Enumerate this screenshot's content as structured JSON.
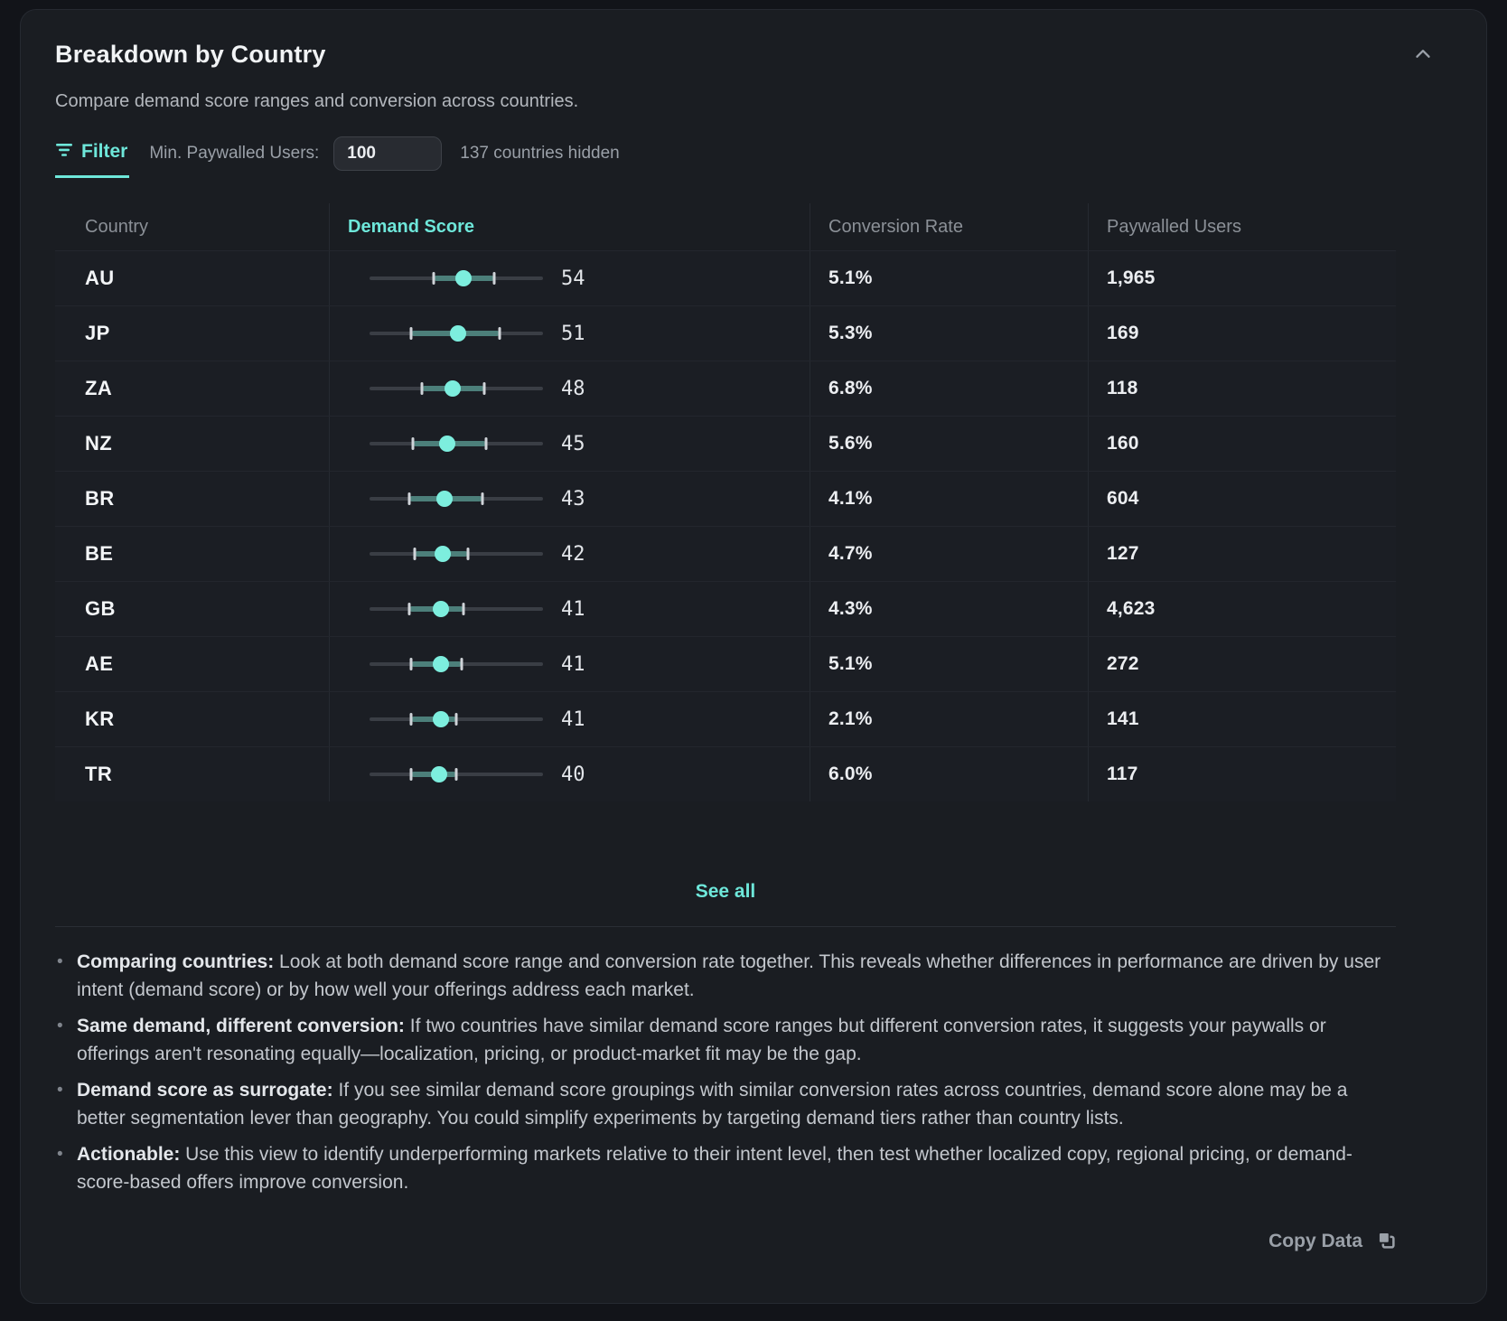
{
  "panel": {
    "title": "Breakdown by Country",
    "subtitle": "Compare demand score ranges and conversion across countries.",
    "collapse_icon": "chevron-up"
  },
  "filter": {
    "label": "Filter",
    "min_label": "Min. Paywalled Users:",
    "input_value": "100",
    "hidden_note": "137 countries hidden"
  },
  "table": {
    "columns": [
      "Country",
      "Demand Score",
      "Conversion Rate",
      "Paywalled Users"
    ],
    "scale_max": 100,
    "rows": [
      {
        "country": "AU",
        "score": 54,
        "low": 37,
        "high": 72,
        "conversion": "5.1%",
        "users": "1,965"
      },
      {
        "country": "JP",
        "score": 51,
        "low": 24,
        "high": 75,
        "conversion": "5.3%",
        "users": "169"
      },
      {
        "country": "ZA",
        "score": 48,
        "low": 30,
        "high": 66,
        "conversion": "6.8%",
        "users": "118"
      },
      {
        "country": "NZ",
        "score": 45,
        "low": 25,
        "high": 67,
        "conversion": "5.6%",
        "users": "160"
      },
      {
        "country": "BR",
        "score": 43,
        "low": 23,
        "high": 65,
        "conversion": "4.1%",
        "users": "604"
      },
      {
        "country": "BE",
        "score": 42,
        "low": 26,
        "high": 57,
        "conversion": "4.7%",
        "users": "127"
      },
      {
        "country": "GB",
        "score": 41,
        "low": 23,
        "high": 54,
        "conversion": "4.3%",
        "users": "4,623"
      },
      {
        "country": "AE",
        "score": 41,
        "low": 24,
        "high": 53,
        "conversion": "5.1%",
        "users": "272"
      },
      {
        "country": "KR",
        "score": 41,
        "low": 24,
        "high": 50,
        "conversion": "2.1%",
        "users": "141"
      },
      {
        "country": "TR",
        "score": 40,
        "low": 24,
        "high": 50,
        "conversion": "6.0%",
        "users": "117"
      }
    ],
    "see_all": "See all"
  },
  "notes": [
    {
      "lead": "Comparing countries:",
      "text": " Look at both demand score range and conversion rate together. This reveals whether differences in performance are driven by user intent (demand score) or by how well your offerings address each market."
    },
    {
      "lead": "Same demand, different conversion:",
      "text": " If two countries have similar demand score ranges but different conversion rates, it suggests your paywalls or offerings aren't resonating equally—localization, pricing, or product-market fit may be the gap."
    },
    {
      "lead": "Demand score as surrogate:",
      "text": " If you see similar demand score groupings with similar conversion rates across countries, demand score alone may be a better segmentation lever than geography. You could simplify experiments by targeting demand tiers rather than country lists."
    },
    {
      "lead": "Actionable:",
      "text": " Use this view to identify underperforming markets relative to their intent level, then test whether localized copy, regional pricing, or demand-score-based offers improve conversion."
    }
  ],
  "footer": {
    "copy_label": "Copy Data"
  },
  "colors": {
    "accent": "#6ee7da",
    "dot": "#7deede",
    "range_fill": "#4c7f7a",
    "card_bg": "#1a1d22"
  }
}
